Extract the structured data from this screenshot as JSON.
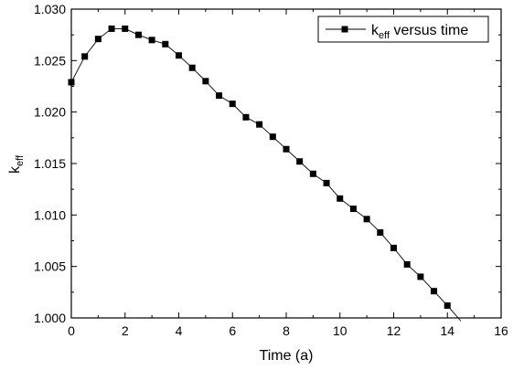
{
  "chart_data": {
    "type": "line",
    "title": "",
    "xlabel": "Time (a)",
    "ylabel": {
      "base": "k",
      "sub": "eff"
    },
    "xlim": [
      0,
      16
    ],
    "ylim": [
      1.0,
      1.03
    ],
    "x_ticks": [
      "0",
      "2",
      "4",
      "6",
      "8",
      "10",
      "12",
      "14",
      "16"
    ],
    "y_ticks": [
      "1.000",
      "1.005",
      "1.010",
      "1.015",
      "1.020",
      "1.025",
      "1.030"
    ],
    "grid": false,
    "legend_position": "top-right",
    "series": [
      {
        "name": {
          "base": "k",
          "sub": "eff",
          "suffix": " versus time"
        },
        "marker": "square",
        "color": "#000000",
        "x": [
          0,
          0.5,
          1,
          1.5,
          2,
          2.5,
          3,
          3.5,
          4,
          4.5,
          5,
          5.5,
          6,
          6.5,
          7,
          7.5,
          8,
          8.5,
          9,
          9.5,
          10,
          10.5,
          11,
          11.5,
          12,
          12.5,
          13,
          13.5,
          14,
          14.5
        ],
        "y": [
          1.0229,
          1.0254,
          1.0271,
          1.0281,
          1.0281,
          1.0275,
          1.027,
          1.0266,
          1.0255,
          1.0243,
          1.023,
          1.0216,
          1.0208,
          1.0195,
          1.0188,
          1.0176,
          1.0164,
          1.0152,
          1.014,
          1.0131,
          1.0116,
          1.0106,
          1.0096,
          1.0083,
          1.0068,
          1.0052,
          1.004,
          1.0026,
          1.0012,
          0.9997
        ]
      }
    ]
  }
}
